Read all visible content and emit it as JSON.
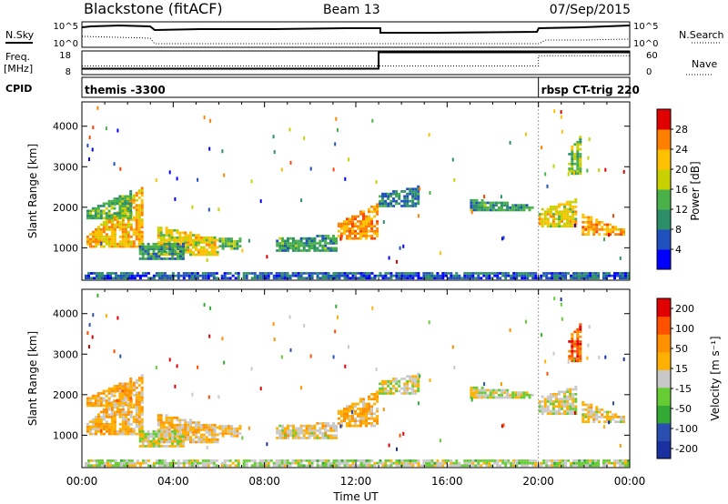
{
  "header": {
    "station": "Blackstone (fitACF)",
    "beam": "Beam 13",
    "date": "07/Sep/2015"
  },
  "status_panel": {
    "nsky_label": "N.Sky",
    "nsky_ticks": [
      "10^5",
      "10^0"
    ],
    "nsearch_label": "N.Search",
    "nsearch_ticks": [
      "10^5",
      "10^0"
    ],
    "freq_label": "Freq.",
    "freq_unit": "[MHz]",
    "freq_ticks": [
      "18",
      "8"
    ],
    "nave_label": "Nave",
    "nave_ticks": [
      "60",
      "0"
    ],
    "freq_steps": [
      {
        "start": 0,
        "end": 13,
        "mhz": 10.5
      },
      {
        "start": 13,
        "end": 24,
        "mhz": 17.4
      }
    ],
    "nave_steps": [
      {
        "start": 0,
        "end": 20,
        "value": 22
      },
      {
        "start": 20,
        "end": 24,
        "value": 48
      }
    ],
    "cpid_label": "CPID",
    "cpid_entries": [
      {
        "start_hour": 0,
        "text": "themis -3300"
      },
      {
        "start_hour": 20,
        "text": "rbsp CT-trig 220"
      }
    ]
  },
  "chart_data": [
    {
      "type": "heatmap",
      "name": "power",
      "ylabel": "Slant Range [km]",
      "xlabel": "Time UT",
      "xlim": [
        0,
        24
      ],
      "ylim": [
        200,
        4600
      ],
      "x_ticks": [
        "00:00",
        "04:00",
        "08:00",
        "12:00",
        "16:00",
        "20:00",
        "00:00"
      ],
      "y_ticks": [
        1000,
        2000,
        3000,
        4000
      ],
      "colorbar": {
        "label": "Power [dB]",
        "ticks": [
          "4",
          "8",
          "12",
          "16",
          "20",
          "24",
          "28"
        ],
        "range": [
          0,
          32
        ]
      },
      "echo_bands": [
        {
          "t0": 0.2,
          "t1": 2.7,
          "r0": 1000,
          "r1": 1250,
          "r1_end": 2500,
          "p": 20,
          "v": -60
        },
        {
          "t0": 0.2,
          "t1": 2.2,
          "r0": 1700,
          "r1": 1900,
          "r1_end": 2400,
          "p": 12,
          "v": -70
        },
        {
          "t0": 3.3,
          "t1": 6.0,
          "r0": 800,
          "r1": 1500,
          "r1_end": 1200,
          "p": 18,
          "v": -50
        },
        {
          "t0": 6.0,
          "t1": 7.0,
          "r0": 950,
          "r1": 1200,
          "r1_end": 1200,
          "p": 12,
          "v": -40
        },
        {
          "t0": 2.5,
          "t1": 4.5,
          "r0": 700,
          "r1": 1100,
          "r1_end": 1100,
          "p": 10,
          "v": 0
        },
        {
          "t0": 8.5,
          "t1": 11.2,
          "r0": 900,
          "r1": 1200,
          "r1_end": 1300,
          "p": 10,
          "v": -30
        },
        {
          "t0": 11.2,
          "t1": 13.0,
          "r0": 1200,
          "r1": 1600,
          "r1_end": 2100,
          "p": 22,
          "v": -70
        },
        {
          "t0": 13.0,
          "t1": 14.8,
          "r0": 2000,
          "r1": 2300,
          "r1_end": 2500,
          "p": 8,
          "v": 0
        },
        {
          "t0": 17.0,
          "t1": 19.8,
          "r0": 1900,
          "r1": 2200,
          "r1_end": 2000,
          "p": 10,
          "v": 0
        },
        {
          "t0": 20.0,
          "t1": 21.7,
          "r0": 1500,
          "r1": 1900,
          "r1_end": 2200,
          "p": 18,
          "v": 0
        },
        {
          "t0": 21.3,
          "t1": 21.9,
          "r0": 2800,
          "r1": 3400,
          "r1_end": 3800,
          "p": 14,
          "v": -150
        },
        {
          "t0": 21.9,
          "t1": 23.8,
          "r0": 1300,
          "r1": 1800,
          "r1_end": 1400,
          "p": 22,
          "v": -20
        },
        {
          "t0": 0.0,
          "t1": 24.0,
          "r0": 220,
          "r1": 380,
          "r1_end": 380,
          "p": 6,
          "v": 20
        }
      ]
    },
    {
      "type": "heatmap",
      "name": "velocity",
      "ylabel": "Slant Range [km]",
      "xlabel": "Time UT",
      "xlim": [
        0,
        24
      ],
      "ylim": [
        200,
        4600
      ],
      "x_ticks": [
        "00:00",
        "04:00",
        "08:00",
        "12:00",
        "16:00",
        "20:00",
        "00:00"
      ],
      "y_ticks": [
        1000,
        2000,
        3000,
        4000
      ],
      "colorbar": {
        "label": "Velocity [m s⁻¹]",
        "ticks": [
          "200",
          "100",
          "50",
          "15",
          "-15",
          "-50",
          "-100",
          "-200"
        ],
        "range": [
          -250,
          250
        ]
      }
    }
  ],
  "axes": {
    "xlabel": "Time UT"
  },
  "colors": {
    "power_scale": [
      "#0000ff",
      "#2050c0",
      "#2c8f6a",
      "#4ab04a",
      "#c8d000",
      "#ffc000",
      "#ff8000",
      "#ff4000",
      "#e00000"
    ],
    "velocity_scale": [
      "#e00000",
      "#ff5000",
      "#ff9000",
      "#ffb000",
      "#c8c8c8",
      "#66cc33",
      "#33aa33",
      "#2a4fb0",
      "#1a2fa0"
    ]
  }
}
